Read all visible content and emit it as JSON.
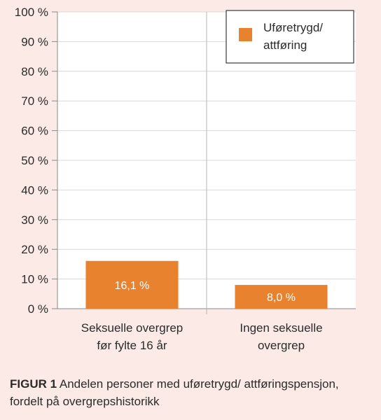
{
  "chart_data": {
    "type": "bar",
    "categories": [
      [
        "Seksuelle overgrep",
        "før fylte 16 år"
      ],
      [
        "Ingen seksuelle",
        "overgrep"
      ]
    ],
    "series": [
      {
        "name": [
          "Uføretrygd/",
          "attføring"
        ],
        "values": [
          16.1,
          8.0
        ]
      }
    ],
    "data_labels": [
      "16,1 %",
      "8,0 %"
    ],
    "y_ticks": [
      0,
      10,
      20,
      30,
      40,
      50,
      60,
      70,
      80,
      90,
      100
    ],
    "y_tick_labels": [
      "0 %",
      "10 %",
      "20 %",
      "30 %",
      "40 %",
      "50 %",
      "60 %",
      "70 %",
      "80 %",
      "90 %",
      "100 %"
    ],
    "ylim": [
      0,
      100
    ],
    "grid": true,
    "legend_position": "top-right",
    "bar_color": "#e8822e"
  },
  "caption": {
    "figure_label": "FIGUR 1",
    "text": "Andelen personer med uføretrygd/ attføringspensjon, fordelt på overgrepshistorikk"
  }
}
